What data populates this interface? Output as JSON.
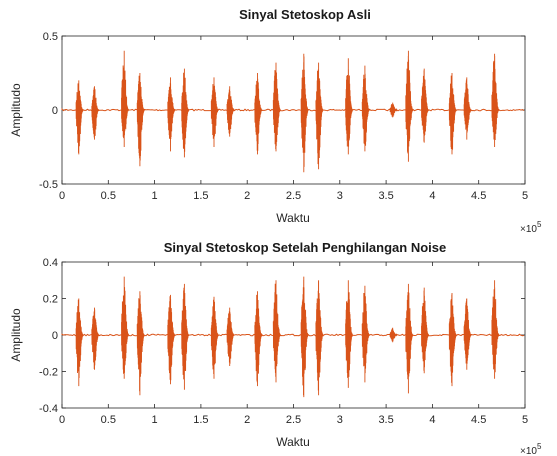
{
  "chart_data": [
    {
      "type": "line",
      "title": "Sinyal Stetoskop Asli",
      "xlabel": "Waktu",
      "ylabel": "Amplitudo",
      "xlim": [
        0,
        500000
      ],
      "ylim": [
        -0.5,
        0.5
      ],
      "xticks": [
        "0",
        "0.5",
        "1",
        "1.5",
        "2",
        "2.5",
        "3",
        "3.5",
        "4",
        "4.5",
        "5"
      ],
      "yticks": [
        "-0.5",
        "0",
        "0.5"
      ],
      "x_multiplier": "×10",
      "x_multiplier_exp": "5",
      "color": "#d95319",
      "baseline": 0,
      "bursts": [
        {
          "x": 19000,
          "peak": 0.2,
          "trough": -0.3
        },
        {
          "x": 36000,
          "peak": 0.16,
          "trough": -0.2
        },
        {
          "x": 68000,
          "peak": 0.4,
          "trough": -0.25
        },
        {
          "x": 85000,
          "peak": 0.25,
          "trough": -0.38
        },
        {
          "x": 118000,
          "peak": 0.22,
          "trough": -0.28
        },
        {
          "x": 133000,
          "peak": 0.28,
          "trough": -0.32
        },
        {
          "x": 165000,
          "peak": 0.22,
          "trough": -0.25
        },
        {
          "x": 182000,
          "peak": 0.16,
          "trough": -0.18
        },
        {
          "x": 212000,
          "peak": 0.25,
          "trough": -0.3
        },
        {
          "x": 232000,
          "peak": 0.32,
          "trough": -0.28
        },
        {
          "x": 262000,
          "peak": 0.38,
          "trough": -0.42
        },
        {
          "x": 278000,
          "peak": 0.32,
          "trough": -0.4
        },
        {
          "x": 310000,
          "peak": 0.35,
          "trough": -0.3
        },
        {
          "x": 328000,
          "peak": 0.3,
          "trough": -0.28
        },
        {
          "x": 358000,
          "peak": 0.05,
          "trough": -0.05
        },
        {
          "x": 375000,
          "peak": 0.4,
          "trough": -0.35
        },
        {
          "x": 392000,
          "peak": 0.28,
          "trough": -0.22
        },
        {
          "x": 422000,
          "peak": 0.25,
          "trough": -0.3
        },
        {
          "x": 438000,
          "peak": 0.22,
          "trough": -0.2
        },
        {
          "x": 468000,
          "peak": 0.38,
          "trough": -0.25
        }
      ]
    },
    {
      "type": "line",
      "title": "Sinyal Stetoskop Setelah Penghilangan Noise",
      "xlabel": "Waktu",
      "ylabel": "Amplitudo",
      "xlim": [
        0,
        500000
      ],
      "ylim": [
        -0.4,
        0.4
      ],
      "xticks": [
        "0",
        "0.5",
        "1",
        "1.5",
        "2",
        "2.5",
        "3",
        "3.5",
        "4",
        "4.5",
        "5"
      ],
      "yticks": [
        "-0.4",
        "-0.2",
        "0",
        "0.2",
        "0.4"
      ],
      "x_multiplier": "×10",
      "x_multiplier_exp": "5",
      "color": "#d95319",
      "baseline": 0,
      "bursts": [
        {
          "x": 19000,
          "peak": 0.2,
          "trough": -0.28
        },
        {
          "x": 36000,
          "peak": 0.15,
          "trough": -0.19
        },
        {
          "x": 68000,
          "peak": 0.32,
          "trough": -0.24
        },
        {
          "x": 85000,
          "peak": 0.24,
          "trough": -0.33
        },
        {
          "x": 118000,
          "peak": 0.22,
          "trough": -0.27
        },
        {
          "x": 133000,
          "peak": 0.28,
          "trough": -0.3
        },
        {
          "x": 165000,
          "peak": 0.21,
          "trough": -0.24
        },
        {
          "x": 182000,
          "peak": 0.15,
          "trough": -0.17
        },
        {
          "x": 212000,
          "peak": 0.24,
          "trough": -0.28
        },
        {
          "x": 232000,
          "peak": 0.3,
          "trough": -0.26
        },
        {
          "x": 262000,
          "peak": 0.32,
          "trough": -0.34
        },
        {
          "x": 278000,
          "peak": 0.3,
          "trough": -0.33
        },
        {
          "x": 310000,
          "peak": 0.3,
          "trough": -0.29
        },
        {
          "x": 328000,
          "peak": 0.27,
          "trough": -0.26
        },
        {
          "x": 358000,
          "peak": 0.04,
          "trough": -0.04
        },
        {
          "x": 375000,
          "peak": 0.28,
          "trough": -0.32
        },
        {
          "x": 392000,
          "peak": 0.26,
          "trough": -0.21
        },
        {
          "x": 422000,
          "peak": 0.23,
          "trough": -0.28
        },
        {
          "x": 438000,
          "peak": 0.2,
          "trough": -0.19
        },
        {
          "x": 468000,
          "peak": 0.3,
          "trough": -0.24
        }
      ]
    }
  ]
}
